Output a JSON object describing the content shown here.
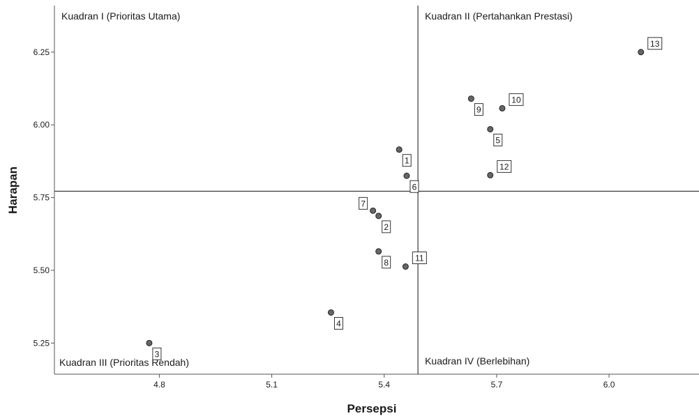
{
  "chart_data": {
    "type": "scatter",
    "xlabel": "Persepsi",
    "ylabel": "Harapan",
    "xlim": [
      4.52,
      6.24
    ],
    "ylim": [
      5.143,
      6.41
    ],
    "xticks": [
      {
        "value": 4.8,
        "label": "4.8"
      },
      {
        "value": 5.1,
        "label": "5.1"
      },
      {
        "value": 5.4,
        "label": "5.4"
      },
      {
        "value": 5.7,
        "label": "5.7"
      },
      {
        "value": 6.0,
        "label": "6.0"
      }
    ],
    "yticks": [
      {
        "value": 5.25,
        "label": "5.25"
      },
      {
        "value": 5.5,
        "label": "5.50"
      },
      {
        "value": 5.75,
        "label": "5.75"
      },
      {
        "value": 6.0,
        "label": "6.00"
      },
      {
        "value": 6.25,
        "label": "6.25"
      }
    ],
    "reference_lines": {
      "x": 5.49,
      "y": 5.772
    },
    "quadrants": [
      {
        "label": "Kuadran I (Prioritas Utama)",
        "position": "top-left"
      },
      {
        "label": "Kuadran II (Pertahankan Prestasi)",
        "position": "top-right"
      },
      {
        "label": "Kuadran III (Prioritas Rendah)",
        "position": "bottom-left"
      },
      {
        "label": "Kuadran IV (Berlebihan)",
        "position": "bottom-right"
      }
    ],
    "points": [
      {
        "label": "1",
        "x": 5.44,
        "y": 5.915,
        "label_pos": "below-right"
      },
      {
        "label": "2",
        "x": 5.385,
        "y": 5.687,
        "label_pos": "below-right"
      },
      {
        "label": "3",
        "x": 4.773,
        "y": 5.25,
        "label_pos": "below-right"
      },
      {
        "label": "4",
        "x": 5.258,
        "y": 5.355,
        "label_pos": "below-right"
      },
      {
        "label": "5",
        "x": 5.683,
        "y": 5.985,
        "label_pos": "below-right"
      },
      {
        "label": "6",
        "x": 5.46,
        "y": 5.825,
        "label_pos": "below-right"
      },
      {
        "label": "7",
        "x": 5.37,
        "y": 5.705,
        "label_pos": "above-left"
      },
      {
        "label": "8",
        "x": 5.385,
        "y": 5.565,
        "label_pos": "below-right"
      },
      {
        "label": "9",
        "x": 5.632,
        "y": 6.09,
        "label_pos": "below-right"
      },
      {
        "label": "10",
        "x": 5.715,
        "y": 6.057,
        "label_pos": "above-right"
      },
      {
        "label": "11",
        "x": 5.457,
        "y": 5.513,
        "label_pos": "above-right"
      },
      {
        "label": "12",
        "x": 5.683,
        "y": 5.827,
        "label_pos": "above-right"
      },
      {
        "label": "13",
        "x": 6.085,
        "y": 6.25,
        "label_pos": "above-right"
      }
    ]
  }
}
